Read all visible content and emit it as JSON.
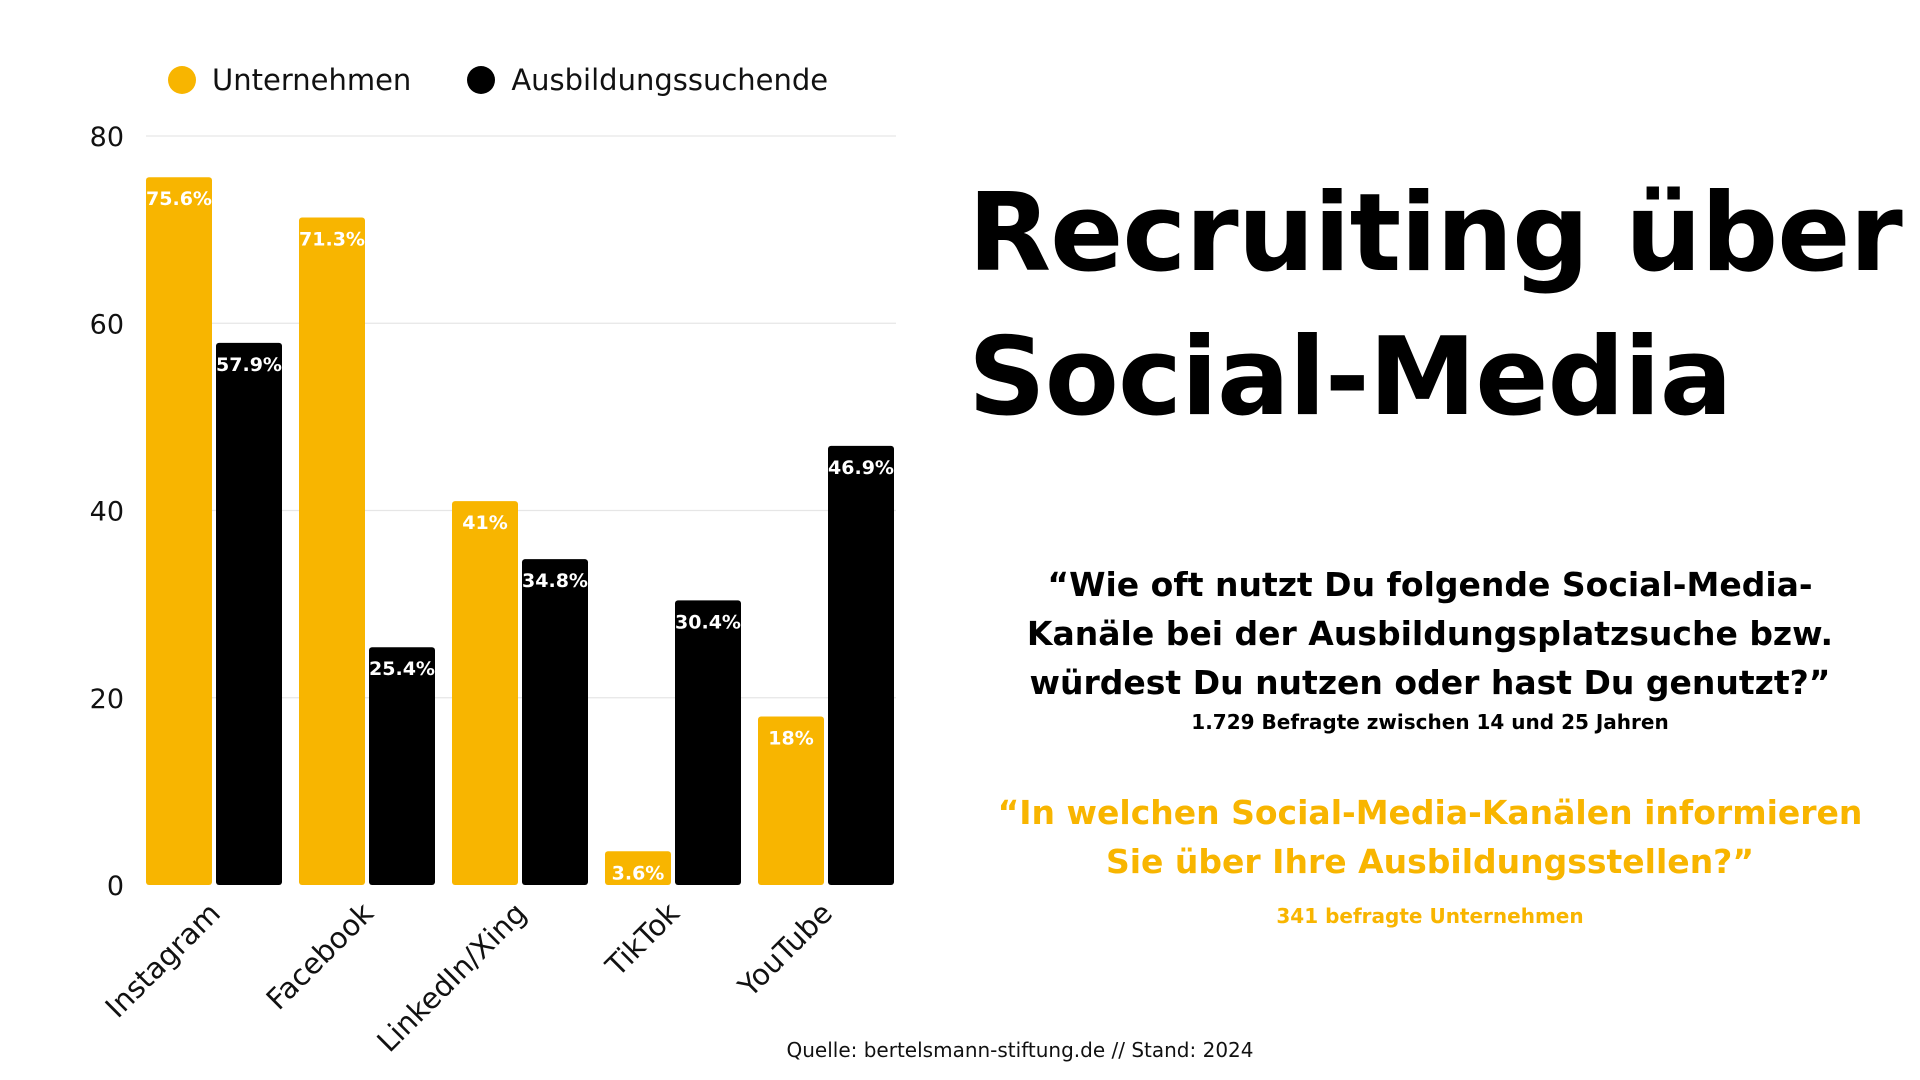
{
  "title_lines": [
    "Recruiting über",
    "Social-Media"
  ],
  "question1": {
    "lines": [
      "“Wie oft nutzt Du folgende Social-Media-",
      "Kanäle bei der Ausbildungsplatzsuche bzw.",
      "würdest Du nutzen oder hast Du genutzt?”"
    ],
    "sub": "1.729 Befragte zwischen 14 und 25 Jahren"
  },
  "question2": {
    "lines": [
      "“In welchen Social-Media-Kanälen informieren",
      "Sie über Ihre Ausbildungsstellen?”"
    ],
    "sub": "341 befragte Unternehmen"
  },
  "source": "Quelle: bertelsmann-stiftung.de // Stand: 2024",
  "colors": {
    "unternehmen": "#f8b500",
    "ausbildungssuchende": "#000000",
    "grid": "#e6e6e6"
  },
  "chart_data": {
    "type": "bar",
    "categories": [
      "Instagram",
      "Facebook",
      "LinkedIn/Xing",
      "TikTok",
      "YouTube"
    ],
    "series": [
      {
        "name": "Unternehmen",
        "values": [
          75.6,
          71.3,
          41,
          3.6,
          18
        ],
        "labels": [
          "75.6%",
          "71.3%",
          "41%",
          "3.6%",
          "18%"
        ]
      },
      {
        "name": "Ausbildungssuchende",
        "values": [
          57.9,
          25.4,
          34.8,
          30.4,
          46.9
        ],
        "labels": [
          "57.9%",
          "25.4%",
          "34.8%",
          "30.4%",
          "46.9%"
        ]
      }
    ],
    "yticks": [
      0,
      20,
      40,
      60,
      80
    ],
    "ylim": [
      0,
      80
    ],
    "grid": true,
    "legend": "top-left"
  }
}
